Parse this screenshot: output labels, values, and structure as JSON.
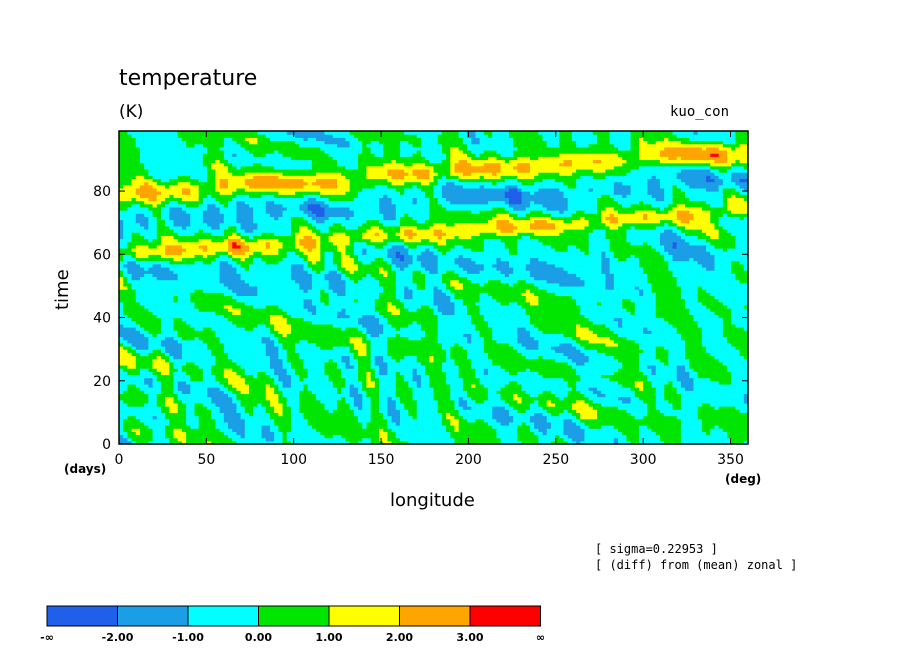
{
  "chart_data": {
    "type": "heatmap",
    "title": "temperature",
    "units": "(K)",
    "experiment": "kuo_con",
    "xlabel": "longitude",
    "ylabel": "time",
    "x_unit": "(deg)",
    "y_unit": "(days)",
    "xlim": [
      0,
      360
    ],
    "ylim": [
      0,
      99
    ],
    "x_ticks": [
      0,
      50,
      100,
      150,
      200,
      250,
      300,
      350
    ],
    "y_ticks": [
      0,
      20,
      40,
      60,
      80
    ],
    "color_levels": [
      "-∞",
      "-2.00",
      "-1.00",
      "0.00",
      "1.00",
      "2.00",
      "3.00",
      "∞"
    ],
    "colors": [
      "#1f5fea",
      "#1a9ee6",
      "#00ffff",
      "#00e600",
      "#ffff00",
      "#ffa500",
      "#ff0000"
    ],
    "annotations": [
      "[ sigma=0.22953 ]",
      "[ (diff) from (mean) zonal ]"
    ],
    "description_values": {
      "warm_bands": [
        {
          "lon": [
            0,
            360
          ],
          "time_start": 76,
          "time_end": 98
        },
        {
          "lon": [
            0,
            360
          ],
          "time_start": 56,
          "time_end": 76
        }
      ]
    }
  }
}
